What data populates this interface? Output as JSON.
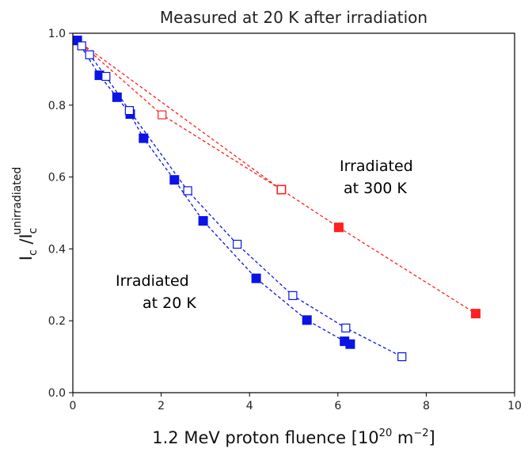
{
  "chart_data": {
    "type": "scatter",
    "title": "Measured at 20 K after irradiation",
    "xlabel": {
      "prefix": "1.2 MeV proton fluence [",
      "base": "10",
      "exp": "20",
      "unit": " m",
      "unit_exp": "−2",
      "suffix": "]"
    },
    "ylabel": {
      "main": "I",
      "sub1": "c",
      "slash": " /I",
      "sub2": "c",
      "sup2": "unirradiated"
    },
    "xlim": [
      0,
      10
    ],
    "ylim": [
      0,
      1.0
    ],
    "xticks": [
      0,
      2,
      4,
      6,
      8,
      10
    ],
    "xtick_labels": [
      "0",
      "2",
      "4",
      "6",
      "8",
      "10"
    ],
    "yticks": [
      0,
      0.2,
      0.4,
      0.6,
      0.8,
      1.0
    ],
    "ytick_labels": [
      "0.0",
      "0.2",
      "0.4",
      "0.6",
      "0.8",
      "1.0"
    ],
    "grid": false,
    "colors": {
      "red": "#ff2020",
      "blue": "#0a14e6"
    },
    "series": [
      {
        "color": "#ff2020",
        "marker": "filled-square",
        "line": "dashed",
        "x": [
          0.1,
          4.72,
          6.02,
          9.12
        ],
        "y": [
          0.98,
          0.565,
          0.46,
          0.22
        ]
      },
      {
        "color": "#ff2020",
        "marker": "open-square",
        "line": "dashed",
        "x": [
          0.1,
          2.02,
          4.72
        ],
        "y": [
          0.98,
          0.773,
          0.565
        ]
      },
      {
        "color": "#0a14e6",
        "marker": "filled-square",
        "line": "dashed",
        "x": [
          0.1,
          0.6,
          1.0,
          1.3,
          1.6,
          2.3,
          2.95,
          4.15,
          5.3,
          6.15,
          6.28
        ],
        "y": [
          0.98,
          0.883,
          0.822,
          0.775,
          0.708,
          0.592,
          0.478,
          0.318,
          0.202,
          0.143,
          0.135
        ]
      },
      {
        "color": "#0a14e6",
        "marker": "open-square",
        "line": "dashed",
        "x": [
          0.2,
          0.38,
          0.75,
          1.28,
          2.6,
          3.72,
          4.98,
          6.18,
          7.45
        ],
        "y": [
          0.965,
          0.94,
          0.88,
          0.785,
          0.562,
          0.413,
          0.27,
          0.18,
          0.1
        ]
      }
    ],
    "annotations": [
      {
        "line1": "Irradiated",
        "line2": "at 300 K",
        "color": "#ff2020"
      },
      {
        "line1": "Irradiated",
        "line2": "at 20 K",
        "color": "#0a14e6"
      }
    ]
  }
}
